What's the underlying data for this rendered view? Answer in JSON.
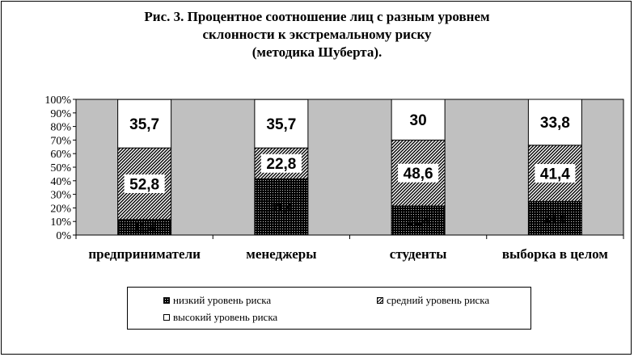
{
  "chart_data": {
    "type": "bar",
    "stacked": true,
    "title_lines": [
      "Рис. 3. Процентное соотношение лиц с разным уровнем",
      "склонности к экстремальному риску",
      "(методика Шуберта)."
    ],
    "categories": [
      "предприниматели",
      "менеджеры",
      "студенты",
      "выборка в целом"
    ],
    "series": [
      {
        "name": "низкий  уровень  риска",
        "values": [
          11.4,
          41.4,
          21.4,
          24.8
        ],
        "pattern": "dotted-black"
      },
      {
        "name": "средний  уровень  риска",
        "values": [
          52.8,
          22.8,
          48.6,
          41.4
        ],
        "pattern": "diagonal-hatch"
      },
      {
        "name": "высокий  уровень  риска",
        "values": [
          35.7,
          35.7,
          30,
          33.8
        ],
        "pattern": "white"
      }
    ],
    "data_labels": [
      [
        "11,4",
        "41,4",
        "21,4",
        "24,8"
      ],
      [
        "52,8",
        "22,8",
        "48,6",
        "41,4"
      ],
      [
        "35,7",
        "35,7",
        "30",
        "33,8"
      ]
    ],
    "y_ticks": [
      "0%",
      "10%",
      "20%",
      "30%",
      "40%",
      "50%",
      "60%",
      "70%",
      "80%",
      "90%",
      "100%"
    ],
    "ylim": [
      0,
      100
    ],
    "plot_background": "#c0c0c0",
    "grid": false,
    "legend_position": "bottom"
  }
}
